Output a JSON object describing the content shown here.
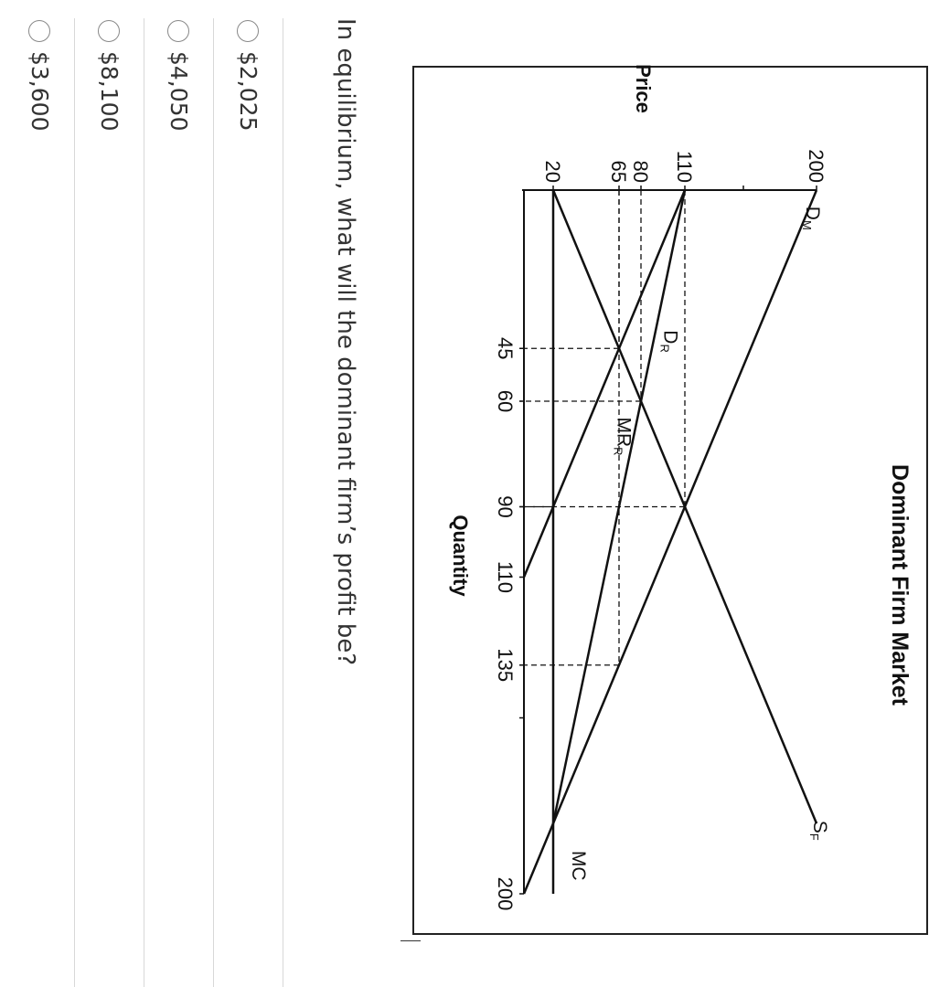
{
  "question": {
    "text": "In equilibrium, what will the dominant firm’s profit be?"
  },
  "options": [
    {
      "label": "$2,025"
    },
    {
      "label": "$4,050"
    },
    {
      "label": "$8,100"
    },
    {
      "label": "$3,600"
    }
  ],
  "chart_data": {
    "type": "line",
    "title": "Dominant Firm Market",
    "xlabel": "Quantity",
    "ylabel": "Price",
    "x_ticks": [
      45,
      60,
      90,
      110,
      135,
      200
    ],
    "y_ticks": [
      20,
      65,
      80,
      110,
      200
    ],
    "xlim": [
      0,
      200
    ],
    "ylim": [
      0,
      200
    ],
    "series": [
      {
        "name": "DM",
        "points": [
          [
            0,
            200
          ],
          [
            200,
            0
          ]
        ]
      },
      {
        "name": "SF",
        "points": [
          [
            0,
            20
          ],
          [
            180,
            200
          ]
        ]
      },
      {
        "name": "DR",
        "points": [
          [
            0,
            110
          ],
          [
            180,
            20
          ]
        ]
      },
      {
        "name": "MRR",
        "points": [
          [
            0,
            110
          ],
          [
            110,
            0
          ]
        ]
      },
      {
        "name": "MC",
        "points": [
          [
            0,
            20
          ],
          [
            200,
            20
          ]
        ]
      }
    ],
    "dashed_guides": [
      {
        "x": 45,
        "y": 65
      },
      {
        "x": 60,
        "y": 80
      },
      {
        "x": 90,
        "y": 110
      },
      {
        "x": 90,
        "y": 20
      },
      {
        "x": 135,
        "y": 65
      }
    ]
  }
}
